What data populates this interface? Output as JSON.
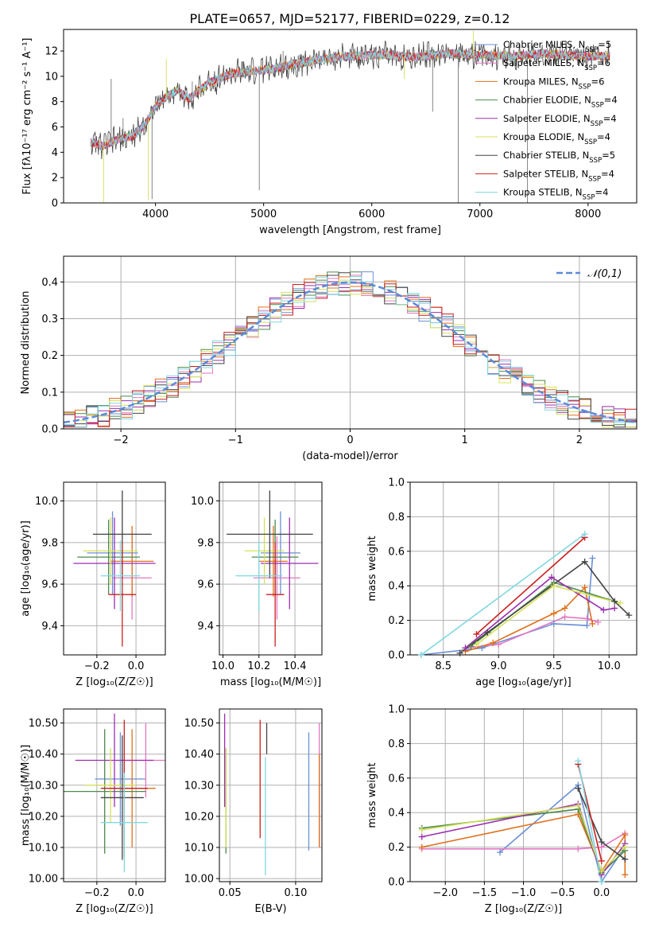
{
  "title": "PLATE=0657, MJD=52177, FIBERID=0229, z=0.12",
  "models": [
    {
      "name": "Chabrier MILES",
      "nssp": "5",
      "color": "#6b8fd6"
    },
    {
      "name": "Salpeter MILES",
      "nssp": "6",
      "color": "#e377c2"
    },
    {
      "name": "Kroupa MILES",
      "nssp": "6",
      "color": "#e0701b"
    },
    {
      "name": "Chabrier ELODIE",
      "nssp": "4",
      "color": "#4c8a4c"
    },
    {
      "name": "Salpeter ELODIE",
      "nssp": "4",
      "color": "#9b2fae"
    },
    {
      "name": "Kroupa ELODIE",
      "nssp": "4",
      "color": "#d4e157"
    },
    {
      "name": "Chabrier STELIB",
      "nssp": "5",
      "color": "#444444"
    },
    {
      "name": "Salpeter STELIB",
      "nssp": "4",
      "color": "#cc1f1f"
    },
    {
      "name": "Kroupa STELIB",
      "nssp": "4",
      "color": "#7fd8e0"
    }
  ],
  "chart_data": [
    {
      "id": "spectrum",
      "type": "line",
      "xlabel": "wavelength [Angstrom, rest frame]",
      "ylabel": "Flux [fλ10⁻¹⁷ erg cm⁻² s⁻¹ A⁻¹]",
      "xlim": [
        3150,
        8450
      ],
      "ylim": [
        0,
        13.7
      ],
      "xticks": [
        4000,
        5000,
        6000,
        7000,
        8000
      ],
      "yticks": [
        0,
        2,
        4,
        6,
        8,
        10,
        12
      ],
      "legend": "right",
      "continuum": {
        "x": [
          3400,
          3500,
          3650,
          3800,
          3900,
          4000,
          4100,
          4200,
          4300,
          4500,
          4700,
          4900,
          5100,
          5300,
          5500,
          5800,
          6100,
          6400,
          6700,
          7000,
          7300,
          7600,
          7900,
          8200
        ],
        "y": [
          4.8,
          4.5,
          5.0,
          5.3,
          6.2,
          7.6,
          8.4,
          8.9,
          8.2,
          9.5,
          10.2,
          10.4,
          10.6,
          11.0,
          11.3,
          11.6,
          11.7,
          11.5,
          11.8,
          11.7,
          11.6,
          11.8,
          11.6,
          11.6
        ]
      },
      "spikes": [
        {
          "x": 3520,
          "y": 0
        },
        {
          "x": 3590,
          "y": 9.8
        },
        {
          "x": 3700,
          "y": 6.7
        },
        {
          "x": 3934,
          "y": 0.2
        },
        {
          "x": 3968,
          "y": 0.3
        },
        {
          "x": 4340,
          "y": 9.6
        },
        {
          "x": 4100,
          "y": 11.4
        },
        {
          "x": 4960,
          "y": 1.0
        },
        {
          "x": 5180,
          "y": 12.0
        },
        {
          "x": 6300,
          "y": 9.8
        },
        {
          "x": 6563,
          "y": 7.2
        },
        {
          "x": 6800,
          "y": 0
        },
        {
          "x": 6940,
          "y": 13.6
        },
        {
          "x": 7440,
          "y": 0
        }
      ]
    },
    {
      "id": "residuals",
      "type": "histogram",
      "xlabel": "(data-model)/error",
      "ylabel": "Normed distribution",
      "xlim": [
        -2.5,
        2.5
      ],
      "ylim": [
        0,
        0.47
      ],
      "xticks": [
        -2,
        -1,
        0,
        1,
        2
      ],
      "yticks": [
        0.0,
        0.1,
        0.2,
        0.3,
        0.4
      ],
      "reference": {
        "name": "𝒩(0,1)",
        "color": "#5b8bd9"
      },
      "bin_width": 0.1
    },
    {
      "id": "age_vs_Z",
      "type": "errorbar",
      "xlabel": "Z [log₁₀(Z/Z☉)]",
      "ylabel": "age  [log₁₀(age/yr)]",
      "xlim": [
        -0.37,
        0.15
      ],
      "ylim": [
        9.26,
        10.09
      ],
      "xticks": [
        -0.2,
        0.0
      ],
      "yticks": [
        9.4,
        9.6,
        9.8,
        10.0
      ],
      "points": [
        {
          "x": -0.12,
          "y": 9.75,
          "xerr": 0.13,
          "yerr": 0.2
        },
        {
          "x": -0.02,
          "y": 9.63,
          "xerr": 0.1,
          "yerr": 0.2
        },
        {
          "x": -0.02,
          "y": 9.71,
          "xerr": 0.11,
          "yerr": 0.17
        },
        {
          "x": -0.14,
          "y": 9.73,
          "xerr": 0.16,
          "yerr": 0.18
        },
        {
          "x": -0.11,
          "y": 9.7,
          "xerr": 0.21,
          "yerr": 0.22
        },
        {
          "x": -0.13,
          "y": 9.76,
          "xerr": 0.14,
          "yerr": 0.16
        },
        {
          "x": -0.07,
          "y": 9.84,
          "xerr": 0.15,
          "yerr": 0.21
        },
        {
          "x": -0.07,
          "y": 9.55,
          "xerr": 0.07,
          "yerr": 0.25
        },
        {
          "x": -0.08,
          "y": 9.64,
          "xerr": 0.1,
          "yerr": 0.17
        }
      ]
    },
    {
      "id": "age_vs_mass",
      "type": "errorbar",
      "xlabel": "mass [log₁₀(M/M☉)]",
      "ylabel": "",
      "xlim": [
        9.98,
        10.55
      ],
      "ylim": [
        9.26,
        10.09
      ],
      "xticks": [
        10.0,
        10.2,
        10.4
      ],
      "yticks": [
        9.4,
        9.6,
        9.8,
        10.0
      ],
      "points": [
        {
          "x": 10.32,
          "y": 9.75,
          "xerr": 0.11,
          "yerr": 0.2
        },
        {
          "x": 10.3,
          "y": 9.63,
          "xerr": 0.13,
          "yerr": 0.2
        },
        {
          "x": 10.28,
          "y": 9.71,
          "xerr": 0.08,
          "yerr": 0.17
        },
        {
          "x": 10.29,
          "y": 9.73,
          "xerr": 0.13,
          "yerr": 0.18
        },
        {
          "x": 10.37,
          "y": 9.7,
          "xerr": 0.16,
          "yerr": 0.22
        },
        {
          "x": 10.23,
          "y": 9.76,
          "xerr": 0.11,
          "yerr": 0.16
        },
        {
          "x": 10.26,
          "y": 9.84,
          "xerr": 0.24,
          "yerr": 0.21
        },
        {
          "x": 10.29,
          "y": 9.55,
          "xerr": 0.05,
          "yerr": 0.25
        },
        {
          "x": 10.2,
          "y": 9.64,
          "xerr": 0.13,
          "yerr": 0.17
        }
      ]
    },
    {
      "id": "weight_vs_age",
      "type": "line",
      "xlabel": "age  [log₁₀(age/yr)]",
      "ylabel": "mass weight",
      "xlim": [
        8.2,
        10.25
      ],
      "ylim": [
        0.0,
        1.0
      ],
      "xticks": [
        8.5,
        9.0,
        9.5,
        10.0
      ],
      "yticks": [
        0.0,
        0.2,
        0.4,
        0.6,
        0.8,
        1.0
      ],
      "series": [
        {
          "x": [
            8.3,
            8.85,
            9.5,
            9.8,
            9.85
          ],
          "y": [
            0.0,
            0.04,
            0.18,
            0.17,
            0.56
          ]
        },
        {
          "x": [
            8.7,
            9.0,
            9.6,
            9.8,
            9.9
          ],
          "y": [
            0.04,
            0.06,
            0.22,
            0.21,
            0.19
          ]
        },
        {
          "x": [
            8.7,
            8.95,
            9.5,
            9.6,
            9.78,
            9.85
          ],
          "y": [
            0.02,
            0.07,
            0.24,
            0.27,
            0.39,
            0.18
          ]
        },
        {
          "x": [
            8.75,
            9.5,
            10.05
          ],
          "y": [
            0.05,
            0.42,
            0.31
          ]
        },
        {
          "x": [
            8.7,
            9.48,
            9.95,
            10.05
          ],
          "y": [
            0.04,
            0.45,
            0.26,
            0.27
          ]
        },
        {
          "x": [
            8.8,
            9.5,
            10.1
          ],
          "y": [
            0.06,
            0.4,
            0.3
          ]
        },
        {
          "x": [
            8.65,
            8.9,
            9.78,
            10.05,
            10.18
          ],
          "y": [
            0.01,
            0.13,
            0.54,
            0.31,
            0.23
          ]
        },
        {
          "x": [
            8.8,
            9.78
          ],
          "y": [
            0.12,
            0.68
          ]
        },
        {
          "x": [
            8.3,
            9.78
          ],
          "y": [
            0.0,
            0.7
          ]
        }
      ]
    },
    {
      "id": "mass_vs_Z",
      "type": "errorbar",
      "xlabel": "Z [log₁₀(Z/Z☉)]",
      "ylabel": "mass [log₁₀(M/M☉)]",
      "xlim": [
        -0.37,
        0.15
      ],
      "ylim": [
        9.99,
        10.545
      ],
      "xticks": [
        -0.2,
        0.0
      ],
      "yticks": [
        10.0,
        10.1,
        10.2,
        10.3,
        10.4,
        10.5
      ],
      "points": [
        {
          "x": -0.08,
          "y": 10.32,
          "xerr": 0.13,
          "yerr": 0.15
        },
        {
          "x": 0.05,
          "y": 10.38,
          "xerr": 0.13,
          "yerr": 0.12
        },
        {
          "x": -0.02,
          "y": 10.29,
          "xerr": 0.12,
          "yerr": 0.19
        },
        {
          "x": -0.16,
          "y": 10.28,
          "xerr": 0.21,
          "yerr": 0.2
        },
        {
          "x": -0.11,
          "y": 10.38,
          "xerr": 0.2,
          "yerr": 0.15
        },
        {
          "x": -0.13,
          "y": 10.3,
          "xerr": 0.13,
          "yerr": 0.12
        },
        {
          "x": -0.07,
          "y": 10.26,
          "xerr": 0.11,
          "yerr": 0.2
        },
        {
          "x": -0.06,
          "y": 10.29,
          "xerr": 0.12,
          "yerr": 0.22
        },
        {
          "x": -0.06,
          "y": 10.18,
          "xerr": 0.12,
          "yerr": 0.16
        }
      ]
    },
    {
      "id": "mass_vs_EBV",
      "type": "errorbar",
      "xlabel": "E(B-V)",
      "ylabel": "",
      "xlim": [
        0.042,
        0.12
      ],
      "ylim": [
        9.99,
        10.545
      ],
      "xticks": [
        0.05,
        0.1
      ],
      "yticks": [
        10.0,
        10.1,
        10.2,
        10.3,
        10.4,
        10.5
      ],
      "points": [
        {
          "x": 0.11,
          "y": 10.28,
          "xerr": 0,
          "yerr": 0.19
        },
        {
          "x": 0.118,
          "y": 10.3,
          "xerr": 0,
          "yerr": 0.2
        },
        {
          "x": 0.118,
          "y": 10.25,
          "xerr": 0,
          "yerr": 0.15
        },
        {
          "x": 0.047,
          "y": 10.25,
          "xerr": 0,
          "yerr": 0.17
        },
        {
          "x": 0.046,
          "y": 10.38,
          "xerr": 0,
          "yerr": 0.15
        },
        {
          "x": 0.047,
          "y": 10.26,
          "xerr": 0,
          "yerr": 0.16
        },
        {
          "x": 0.078,
          "y": 10.45,
          "xerr": 0,
          "yerr": 0.05
        },
        {
          "x": 0.073,
          "y": 10.32,
          "xerr": 0,
          "yerr": 0.19
        },
        {
          "x": 0.077,
          "y": 10.2,
          "xerr": 0,
          "yerr": 0.19
        }
      ]
    },
    {
      "id": "weight_vs_Z",
      "type": "line",
      "xlabel": "Z [log₁₀(Z/Z☉)]",
      "ylabel": "mass weight",
      "xlim": [
        -2.45,
        0.45
      ],
      "ylim": [
        0.0,
        1.0
      ],
      "xticks": [
        -2.0,
        -1.5,
        -1.0,
        -0.5,
        0.0
      ],
      "yticks": [
        0.0,
        0.2,
        0.4,
        0.6,
        0.8,
        1.0
      ],
      "series": [
        {
          "x": [
            -1.3,
            -0.3,
            0.0,
            0.3
          ],
          "y": [
            0.17,
            0.56,
            0.0,
            0.2
          ]
        },
        {
          "x": [
            -2.3,
            -0.3,
            0.0,
            0.3
          ],
          "y": [
            0.19,
            0.19,
            0.2,
            0.28
          ]
        },
        {
          "x": [
            -2.3,
            -0.3,
            0.0,
            0.3,
            0.3
          ],
          "y": [
            0.2,
            0.39,
            0.06,
            0.27,
            0.04
          ]
        },
        {
          "x": [
            -2.3,
            -0.3,
            0.0,
            0.3
          ],
          "y": [
            0.31,
            0.42,
            0.05,
            0.18
          ]
        },
        {
          "x": [
            -2.3,
            -0.3,
            0.0,
            0.3
          ],
          "y": [
            0.26,
            0.45,
            0.04,
            0.22
          ]
        },
        {
          "x": [
            -2.3,
            -0.3,
            0.0,
            0.3
          ],
          "y": [
            0.3,
            0.44,
            0.06,
            0.2
          ]
        },
        {
          "x": [
            -0.3,
            0.0,
            0.3
          ],
          "y": [
            0.54,
            0.23,
            0.13
          ]
        },
        {
          "x": [
            -0.3,
            0.0
          ],
          "y": [
            0.68,
            0.12
          ]
        },
        {
          "x": [
            -0.3,
            0.0
          ],
          "y": [
            0.7,
            0.0
          ]
        }
      ]
    }
  ]
}
